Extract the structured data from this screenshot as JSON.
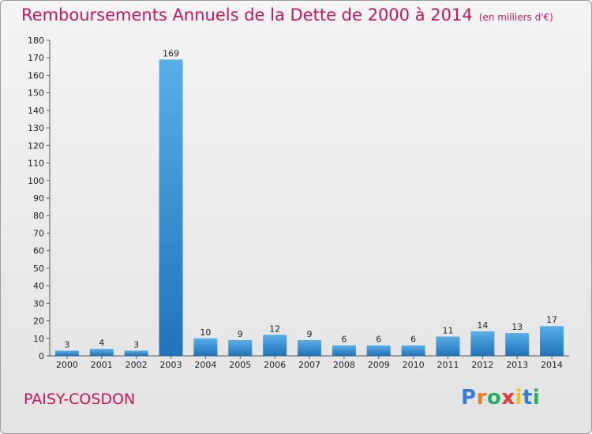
{
  "title": "Remboursements Annuels de la Dette de 2000 à 2014",
  "unit": "(en milliers d'€)",
  "commune": "PAISY-COSDON",
  "logo": {
    "letters": [
      "P",
      "r",
      "o",
      "x",
      "i",
      "t",
      "i"
    ],
    "colors": [
      "#3a7bd5",
      "#e67e22",
      "#27ae60",
      "#e53935",
      "#f1c40f",
      "#3a7bd5",
      "#27ae60"
    ]
  },
  "colors": {
    "title": "#c2185b",
    "bar_top": "#5aaee8",
    "bar_bottom": "#1f73b8"
  },
  "chart_data": {
    "type": "bar",
    "categories": [
      "2000",
      "2001",
      "2002",
      "2003",
      "2004",
      "2005",
      "2006",
      "2007",
      "2008",
      "2009",
      "2010",
      "2011",
      "2012",
      "2013",
      "2014"
    ],
    "values": [
      3,
      4,
      3,
      169,
      10,
      9,
      12,
      9,
      6,
      6,
      6,
      11,
      14,
      13,
      17
    ],
    "ylim": [
      0,
      180
    ],
    "yticks": [
      0,
      10,
      20,
      30,
      40,
      50,
      60,
      70,
      80,
      90,
      100,
      110,
      120,
      130,
      140,
      150,
      160,
      170,
      180
    ],
    "grid": false,
    "data_labels": true
  }
}
